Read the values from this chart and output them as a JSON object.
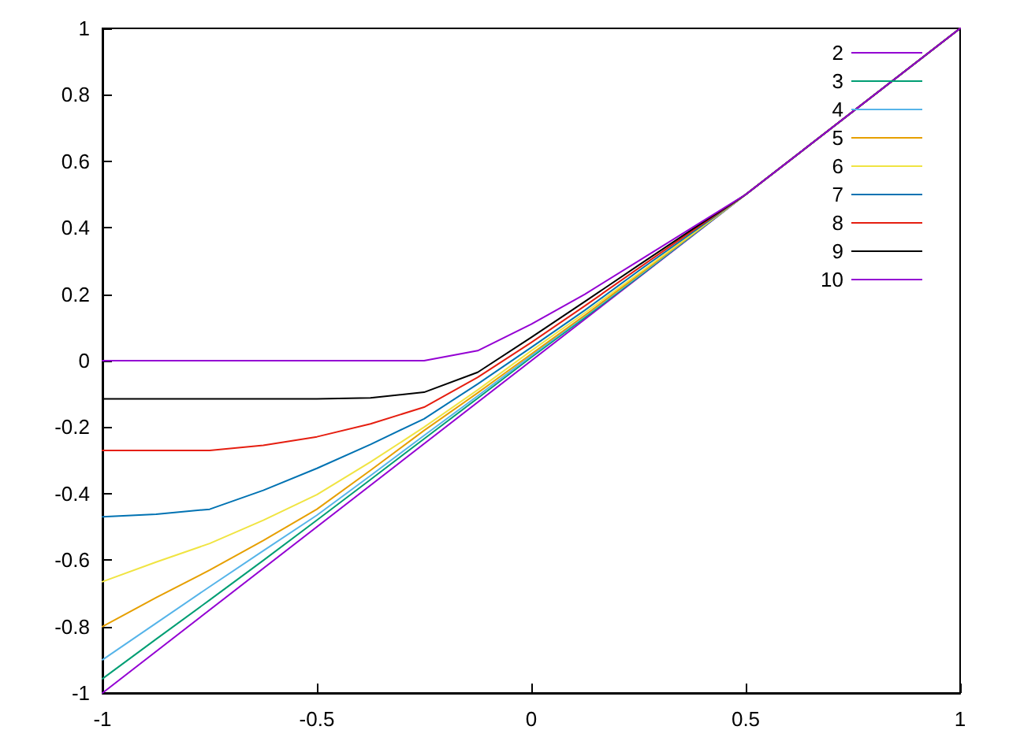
{
  "chart_data": {
    "type": "line",
    "x": [
      -1,
      -0.875,
      -0.75,
      -0.625,
      -0.5,
      -0.375,
      -0.25,
      -0.125,
      0,
      0.125,
      0.25,
      0.375,
      0.5,
      1
    ],
    "xlim": [
      -1,
      1
    ],
    "xticks": [
      -1,
      -0.5,
      0,
      0.5,
      1
    ],
    "ylim": [
      -1,
      1
    ],
    "yticks": [
      -1,
      -0.8,
      -0.6,
      -0.4,
      -0.2,
      0,
      0.2,
      0.4,
      0.6,
      0.8,
      1
    ],
    "legend": "top right",
    "marker": "none",
    "line_style": "solid",
    "series": [
      {
        "name": "2",
        "color": "#9400d3",
        "x": [
          -1,
          1
        ],
        "values": [
          -1,
          1
        ]
      },
      {
        "name": "3",
        "color": "#009e73",
        "values": [
          -0.957,
          -0.838,
          -0.72,
          -0.601,
          -0.48,
          -0.358,
          -0.235,
          -0.113,
          0.01,
          0.13,
          0.252,
          0.376,
          0.5,
          1
        ]
      },
      {
        "name": "4",
        "color": "#56b4e9",
        "values": [
          -0.9,
          -0.79,
          -0.68,
          -0.572,
          -0.465,
          -0.346,
          -0.225,
          -0.106,
          0.015,
          0.134,
          0.255,
          0.378,
          0.5,
          1
        ]
      },
      {
        "name": "5",
        "color": "#e69f00",
        "values": [
          -0.8,
          -0.713,
          -0.63,
          -0.541,
          -0.447,
          -0.33,
          -0.21,
          -0.097,
          0.02,
          0.137,
          0.258,
          0.379,
          0.5,
          1
        ]
      },
      {
        "name": "6",
        "color": "#f0e442",
        "values": [
          -0.665,
          -0.606,
          -0.55,
          -0.48,
          -0.403,
          -0.305,
          -0.2,
          -0.088,
          0.03,
          0.144,
          0.262,
          0.381,
          0.5,
          1
        ]
      },
      {
        "name": "7",
        "color": "#0072b2",
        "values": [
          -0.47,
          -0.462,
          -0.447,
          -0.39,
          -0.324,
          -0.252,
          -0.175,
          -0.07,
          0.04,
          0.152,
          0.27,
          0.385,
          0.5,
          1
        ]
      },
      {
        "name": "8",
        "color": "#e51e10",
        "values": [
          -0.27,
          -0.27,
          -0.27,
          -0.255,
          -0.229,
          -0.19,
          -0.14,
          -0.05,
          0.055,
          0.165,
          0.278,
          0.39,
          0.5,
          1
        ]
      },
      {
        "name": "9",
        "color": "#000000",
        "values": [
          -0.115,
          -0.115,
          -0.115,
          -0.115,
          -0.115,
          -0.112,
          -0.095,
          -0.035,
          0.07,
          0.178,
          0.287,
          0.395,
          0.5,
          1
        ]
      },
      {
        "name": "10",
        "color": "#9400d3",
        "values": [
          0,
          0,
          0,
          0,
          0,
          0,
          0,
          0.03,
          0.11,
          0.2,
          0.3,
          0.4,
          0.5,
          1
        ]
      }
    ]
  }
}
